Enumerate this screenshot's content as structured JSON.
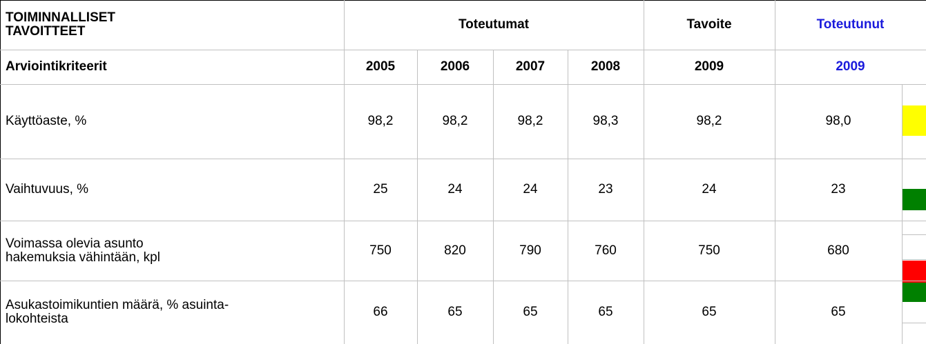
{
  "table": {
    "header": {
      "title_lines": [
        "TOIMINNALLISET",
        "TAVOITTEET"
      ],
      "group_actual": "Toteutumat",
      "group_target": "Tavoite",
      "group_realized": "Toteutunut",
      "criteria_label": "Arviointikriteerit",
      "years": [
        "2005",
        "2006",
        "2007",
        "2008"
      ],
      "target_year": "2009",
      "realized_year": "2009"
    },
    "rows": [
      {
        "label_lines": [
          "Käyttöaste, %"
        ],
        "values": [
          "98,2",
          "98,2",
          "98,2",
          "98,3"
        ],
        "target": "98,2",
        "realized": "98,0"
      },
      {
        "label_lines": [
          "Vaihtuvuus, %"
        ],
        "values": [
          "25",
          "24",
          "24",
          "23"
        ],
        "target": "24",
        "realized": "23"
      },
      {
        "label_lines": [
          "Voimassa olevia asunto",
          "hakemuksia vähintään, kpl"
        ],
        "values": [
          "750",
          "820",
          "790",
          "760"
        ],
        "target": "750",
        "realized": "680"
      },
      {
        "label_lines": [
          "Asukastoimikuntien määrä, % asuinta-",
          "lokohteista"
        ],
        "values": [
          "66",
          "65",
          "65",
          "65"
        ],
        "target": "65",
        "realized": "65"
      }
    ]
  }
}
